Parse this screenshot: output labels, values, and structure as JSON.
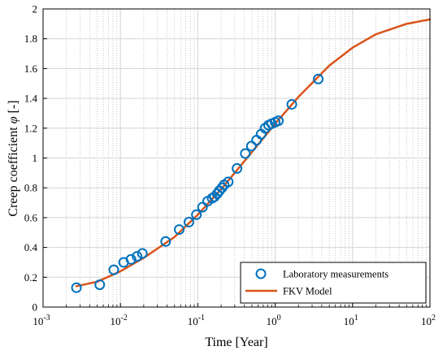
{
  "chart_data": {
    "type": "scatter",
    "xlabel": "Time [Year]",
    "ylabel_prefix": "Creep coefficient ",
    "ylabel_symbol": "φ",
    "ylabel_suffix": " [-]",
    "x_scale": "log",
    "xlim": [
      0.001,
      100
    ],
    "ylim": [
      0,
      2
    ],
    "x_ticks": [
      {
        "base": "10",
        "exp": "-3",
        "value": 0.001
      },
      {
        "base": "10",
        "exp": "-2",
        "value": 0.01
      },
      {
        "base": "10",
        "exp": "-1",
        "value": 0.1
      },
      {
        "base": "10",
        "exp": "0",
        "value": 1
      },
      {
        "base": "10",
        "exp": "1",
        "value": 10
      },
      {
        "base": "10",
        "exp": "2",
        "value": 100
      }
    ],
    "y_ticks": [
      "0",
      "0.2",
      "0.4",
      "0.6",
      "0.8",
      "1",
      "1.2",
      "1.4",
      "1.6",
      "1.8",
      "2"
    ],
    "grid": true,
    "minor_grid_x": true,
    "legend_position": "bottom-right",
    "series": [
      {
        "name": "Laboratory measurements",
        "kind": "markers",
        "marker": "circle",
        "color": "#0072BD",
        "points": [
          {
            "x": 0.0027,
            "y": 0.13
          },
          {
            "x": 0.0054,
            "y": 0.15
          },
          {
            "x": 0.0082,
            "y": 0.25
          },
          {
            "x": 0.011,
            "y": 0.3
          },
          {
            "x": 0.0137,
            "y": 0.32
          },
          {
            "x": 0.0164,
            "y": 0.34
          },
          {
            "x": 0.0192,
            "y": 0.36
          },
          {
            "x": 0.0384,
            "y": 0.44
          },
          {
            "x": 0.0575,
            "y": 0.52
          },
          {
            "x": 0.0767,
            "y": 0.57
          },
          {
            "x": 0.0959,
            "y": 0.62
          },
          {
            "x": 0.115,
            "y": 0.67
          },
          {
            "x": 0.134,
            "y": 0.71
          },
          {
            "x": 0.153,
            "y": 0.73
          },
          {
            "x": 0.164,
            "y": 0.74
          },
          {
            "x": 0.178,
            "y": 0.76
          },
          {
            "x": 0.19,
            "y": 0.78
          },
          {
            "x": 0.205,
            "y": 0.8
          },
          {
            "x": 0.219,
            "y": 0.82
          },
          {
            "x": 0.247,
            "y": 0.84
          },
          {
            "x": 0.321,
            "y": 0.93
          },
          {
            "x": 0.411,
            "y": 1.03
          },
          {
            "x": 0.493,
            "y": 1.08
          },
          {
            "x": 0.575,
            "y": 1.12
          },
          {
            "x": 0.658,
            "y": 1.16
          },
          {
            "x": 0.74,
            "y": 1.2
          },
          {
            "x": 0.822,
            "y": 1.22
          },
          {
            "x": 0.9,
            "y": 1.23
          },
          {
            "x": 1.0,
            "y": 1.24
          },
          {
            "x": 1.1,
            "y": 1.25
          },
          {
            "x": 1.64,
            "y": 1.36
          },
          {
            "x": 3.6,
            "y": 1.53
          }
        ]
      },
      {
        "name": "FKV Model",
        "kind": "line",
        "color": "#D95319",
        "points": [
          {
            "x": 0.0027,
            "y": 0.14
          },
          {
            "x": 0.005,
            "y": 0.17
          },
          {
            "x": 0.01,
            "y": 0.24
          },
          {
            "x": 0.02,
            "y": 0.33
          },
          {
            "x": 0.05,
            "y": 0.47
          },
          {
            "x": 0.1,
            "y": 0.62
          },
          {
            "x": 0.2,
            "y": 0.79
          },
          {
            "x": 0.5,
            "y": 1.04
          },
          {
            "x": 1,
            "y": 1.23
          },
          {
            "x": 2,
            "y": 1.41
          },
          {
            "x": 5,
            "y": 1.62
          },
          {
            "x": 10,
            "y": 1.74
          },
          {
            "x": 20,
            "y": 1.83
          },
          {
            "x": 50,
            "y": 1.9
          },
          {
            "x": 100,
            "y": 1.93
          }
        ]
      }
    ]
  }
}
